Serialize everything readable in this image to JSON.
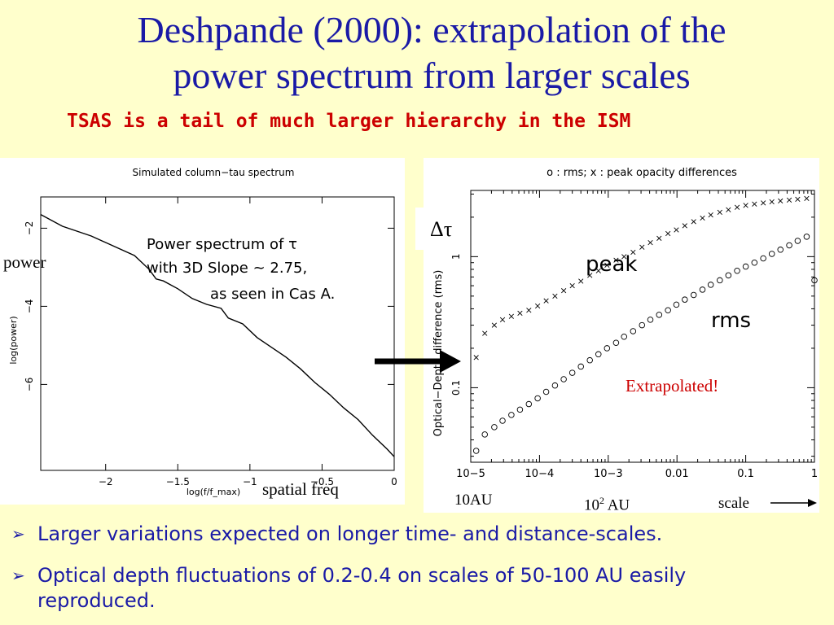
{
  "slide": {
    "title_line1": "Deshpande (2000): extrapolation of the",
    "title_line2": "power spectrum from larger scales",
    "subtitle": "TSAS is a tail of much larger hierarchy in the ISM",
    "bullets": [
      "Larger variations expected on longer time- and distance-scales.",
      "Optical depth fluctuations of 0.2-0.4 on scales of 50-100 AU easily reproduced."
    ],
    "bullet_marker": "➢"
  },
  "annotations": {
    "power": "power",
    "spectrum_line1": "Power spectrum of τ",
    "spectrum_line2": "with 3D Slope ~ 2.75,",
    "spectrum_line3": "as seen in Cas A.",
    "spatial_freq": "spatial freq",
    "delta_tau": "Δτ",
    "peak": "peak",
    "rms": "rms",
    "extrapolated": "Extrapolated!",
    "au10": "10AU",
    "au100_base": "10",
    "au100_exp": "2",
    "au100_unit": " AU",
    "scale": "scale"
  },
  "colors": {
    "title": "#1a1aa6",
    "subtitle": "#cc0000",
    "extrapolated": "#cc0000",
    "background": "#ffffcc"
  },
  "chart_data": [
    {
      "type": "line",
      "title": "Simulated column−tau spectrum",
      "xlabel": "log(f/f_max)",
      "ylabel": "log(power)",
      "xlim": [
        -2.45,
        0
      ],
      "ylim": [
        -8.2,
        -1.2
      ],
      "xticks": [
        -2,
        -1.5,
        -1,
        -0.5,
        0
      ],
      "xtick_labels": [
        "−2",
        "−1.5",
        "−1",
        "−0.5",
        "0"
      ],
      "yticks": [
        -2,
        -4,
        -6
      ],
      "ytick_labels": [
        "−2",
        "−4",
        "−6"
      ],
      "series": [
        {
          "x": [
            -2.45,
            -2.3,
            -2.1,
            -1.95,
            -1.8,
            -1.7,
            -1.65,
            -1.6,
            -1.5,
            -1.4,
            -1.3,
            -1.2,
            -1.15,
            -1.05,
            -0.95,
            -0.85,
            -0.75,
            -0.65,
            -0.55,
            -0.45,
            -0.35,
            -0.25,
            -0.15,
            -0.05,
            0
          ],
          "y": [
            -1.65,
            -1.95,
            -2.2,
            -2.45,
            -2.7,
            -3.05,
            -3.3,
            -3.35,
            -3.55,
            -3.8,
            -3.95,
            -4.05,
            -4.3,
            -4.45,
            -4.8,
            -5.05,
            -5.3,
            -5.6,
            -5.95,
            -6.25,
            -6.6,
            -6.9,
            -7.3,
            -7.65,
            -7.85
          ]
        }
      ]
    },
    {
      "type": "scatter",
      "title": "o : rms; x : peak opacity differences",
      "xlabel": "",
      "ylabel": "Optical−Depth difference (rms)",
      "xscale": "log",
      "yscale": "log",
      "xlim": [
        1e-05,
        1
      ],
      "ylim": [
        0.027,
        3.2
      ],
      "xtick_labels": [
        "10−5",
        "10−4",
        "10−3",
        "0.01",
        "0.1",
        "1"
      ],
      "ytick_labels": [
        "0.1",
        "1"
      ],
      "series": [
        {
          "name": "peak",
          "marker": "x",
          "x": [
            1.2e-05,
            1.6e-05,
            2.2e-05,
            2.9e-05,
            3.9e-05,
            5.2e-05,
            7e-05,
            9.4e-05,
            0.000125,
            0.000168,
            0.000225,
            0.0003,
            0.0004,
            0.00054,
            0.00072,
            0.00096,
            0.0013,
            0.0017,
            0.0023,
            0.0031,
            0.0041,
            0.0055,
            0.0074,
            0.0098,
            0.013,
            0.0175,
            0.0235,
            0.031,
            0.042,
            0.056,
            0.075,
            0.1,
            0.134,
            0.18,
            0.24,
            0.32,
            0.43,
            0.57,
            0.77
          ],
          "y": [
            0.17,
            0.26,
            0.3,
            0.33,
            0.35,
            0.37,
            0.39,
            0.42,
            0.46,
            0.5,
            0.55,
            0.6,
            0.65,
            0.72,
            0.78,
            0.86,
            0.94,
            1.0,
            1.08,
            1.18,
            1.28,
            1.38,
            1.5,
            1.6,
            1.72,
            1.85,
            1.97,
            2.08,
            2.18,
            2.28,
            2.38,
            2.46,
            2.52,
            2.57,
            2.62,
            2.66,
            2.7,
            2.74,
            2.78
          ]
        },
        {
          "name": "rms",
          "marker": "o",
          "x": [
            1.2e-05,
            1.6e-05,
            2.2e-05,
            2.9e-05,
            3.9e-05,
            5.2e-05,
            7e-05,
            9.4e-05,
            0.000125,
            0.000168,
            0.000225,
            0.0003,
            0.0004,
            0.00054,
            0.00072,
            0.00096,
            0.0013,
            0.0017,
            0.0023,
            0.0031,
            0.0041,
            0.0055,
            0.0074,
            0.0098,
            0.013,
            0.0175,
            0.0235,
            0.031,
            0.042,
            0.056,
            0.075,
            0.1,
            0.134,
            0.18,
            0.24,
            0.32,
            0.43,
            0.57,
            0.77,
            1.0
          ],
          "y": [
            0.033,
            0.044,
            0.05,
            0.056,
            0.062,
            0.068,
            0.075,
            0.083,
            0.093,
            0.104,
            0.116,
            0.13,
            0.145,
            0.162,
            0.18,
            0.2,
            0.22,
            0.245,
            0.27,
            0.3,
            0.33,
            0.36,
            0.39,
            0.43,
            0.47,
            0.51,
            0.56,
            0.61,
            0.66,
            0.72,
            0.78,
            0.84,
            0.9,
            0.97,
            1.05,
            1.13,
            1.22,
            1.32,
            1.42,
            0.66
          ]
        }
      ]
    }
  ]
}
